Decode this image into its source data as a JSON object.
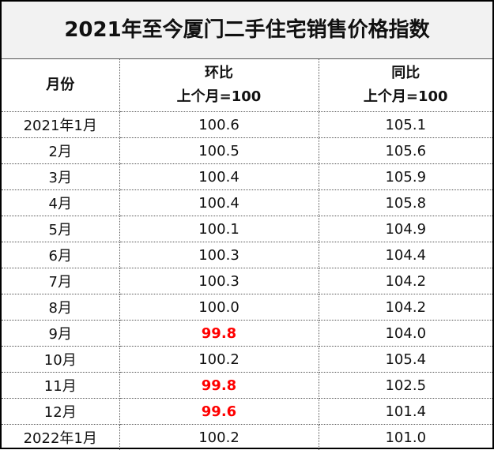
{
  "title": "2021年至今厦门二手住宅销售价格指数",
  "header": [
    [
      "月份"
    ],
    [
      "环比",
      "上个月=100"
    ],
    [
      "同比",
      "上个月=100"
    ]
  ],
  "emphasis_color": "#ff0000",
  "rows": [
    [
      "2021年1月",
      "100.6",
      "105.1"
    ],
    [
      "2月",
      "100.5",
      "105.6"
    ],
    [
      "3月",
      "100.4",
      "105.9"
    ],
    [
      "4月",
      "100.4",
      "105.8"
    ],
    [
      "5月",
      "100.1",
      "104.9"
    ],
    [
      "6月",
      "100.3",
      "104.4"
    ],
    [
      "7月",
      "100.3",
      "104.2"
    ],
    [
      "8月",
      "100.0",
      "104.2"
    ],
    [
      "9月",
      {
        "text": "99.8",
        "emphasis": true
      },
      "104.0"
    ],
    [
      "10月",
      "100.2",
      "105.4"
    ],
    [
      "11月",
      {
        "text": "99.8",
        "emphasis": true
      },
      "102.5"
    ],
    [
      "12月",
      {
        "text": "99.6",
        "emphasis": true
      },
      "101.4"
    ],
    [
      "2022年1月",
      "100.2",
      "101.0"
    ]
  ]
}
